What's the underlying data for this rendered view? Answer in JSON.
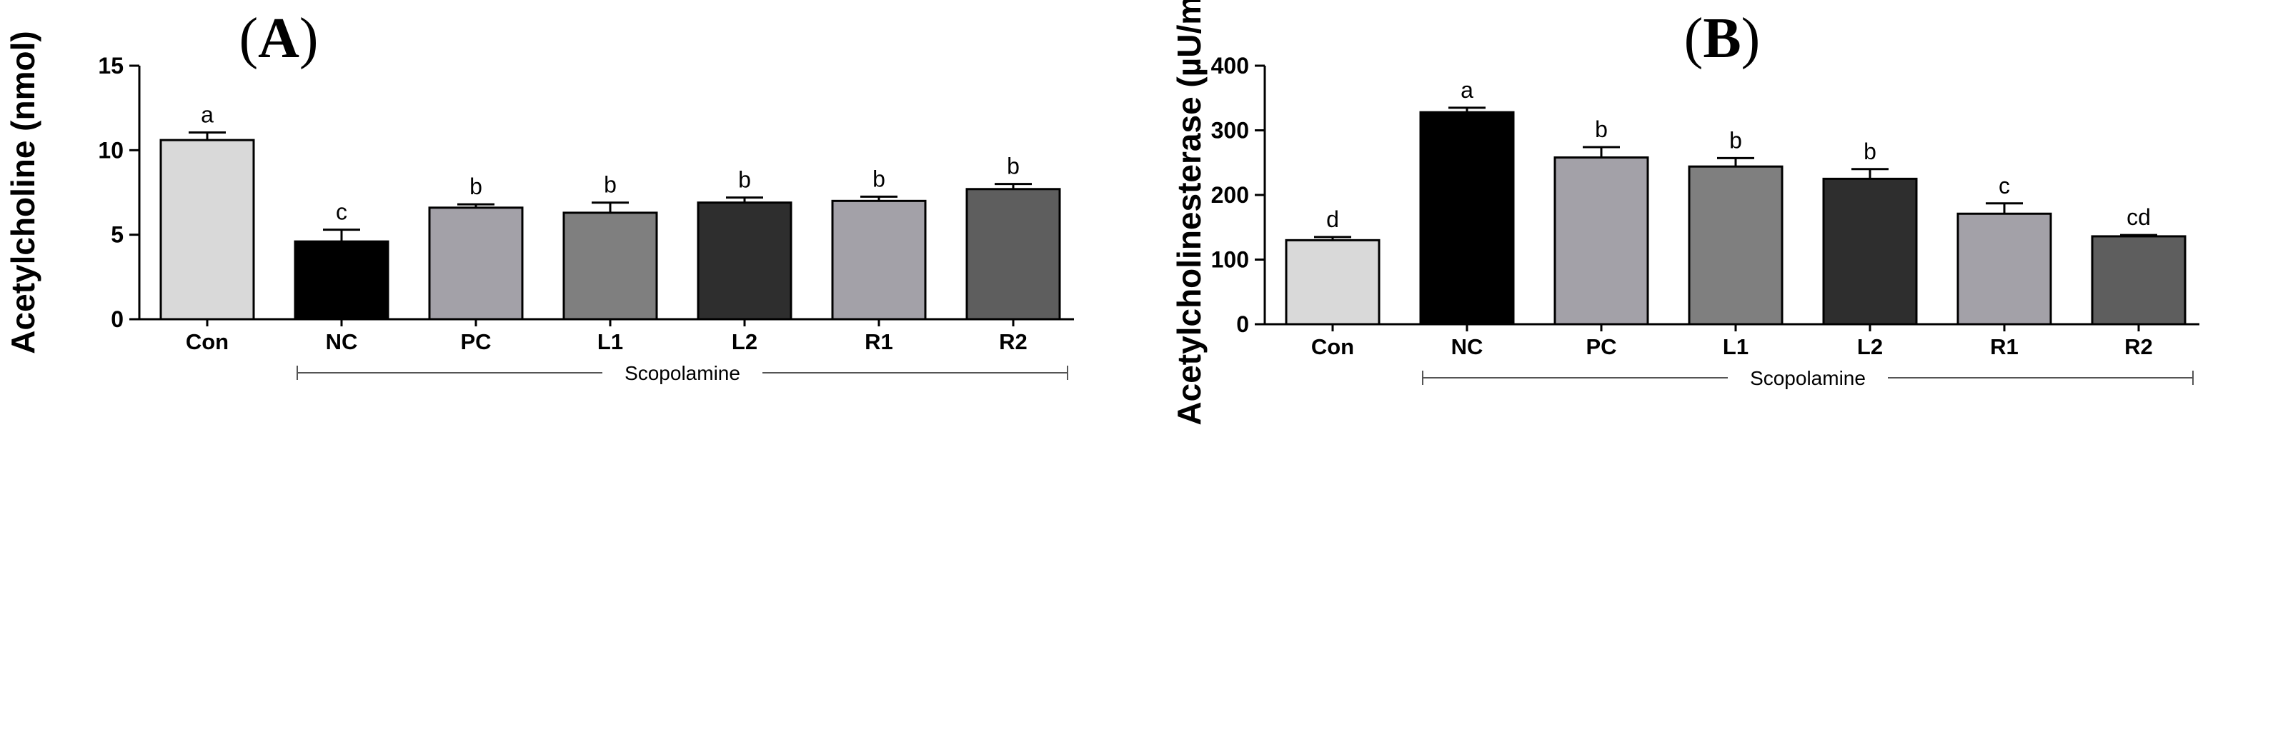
{
  "chart_data": [
    {
      "type": "bar",
      "panel": "A",
      "panel_label_prefix": "(",
      "panel_label_suffix": ")",
      "title": "(A)",
      "ylabel": "Acetylcholine (nmol)",
      "xlabel": "",
      "ylim": [
        0,
        15
      ],
      "yticks": [
        0,
        5,
        10,
        15
      ],
      "categories": [
        "Con",
        "NC",
        "PC",
        "L1",
        "L2",
        "R1",
        "R2"
      ],
      "values": [
        10.6,
        4.6,
        6.6,
        6.3,
        6.9,
        7.0,
        7.7
      ],
      "errors": [
        0.45,
        0.7,
        0.2,
        0.6,
        0.3,
        0.25,
        0.3
      ],
      "significance": [
        "a",
        "c",
        "b",
        "b",
        "b",
        "b",
        "b"
      ],
      "bar_colors": [
        "#d9d9d9",
        "#000000",
        "#a3a1a8",
        "#7f7f7f",
        "#2e2e2e",
        "#a3a1a8",
        "#5e5e5e"
      ],
      "group_bracket": {
        "label": "Scopolamine",
        "from": "NC",
        "to": "R2"
      }
    },
    {
      "type": "bar",
      "panel": "B",
      "panel_label_prefix": "(",
      "panel_label_suffix": ")",
      "title": "(B)",
      "ylabel": "Acetylcholinesterase (µU/mL)",
      "xlabel": "",
      "ylim": [
        0,
        400
      ],
      "yticks": [
        0,
        100,
        200,
        300,
        400
      ],
      "categories": [
        "Con",
        "NC",
        "PC",
        "L1",
        "L2",
        "R1",
        "R2"
      ],
      "values": [
        130,
        328,
        258,
        244,
        225,
        171,
        136
      ],
      "errors": [
        5,
        7,
        16,
        13,
        15,
        16,
        2
      ],
      "significance": [
        "d",
        "a",
        "b",
        "b",
        "b",
        "c",
        "cd"
      ],
      "bar_colors": [
        "#d9d9d9",
        "#000000",
        "#a3a1a8",
        "#7f7f7f",
        "#2e2e2e",
        "#a3a1a8",
        "#5e5e5e"
      ],
      "group_bracket": {
        "label": "Scopolamine",
        "from": "NC",
        "to": "R2"
      }
    }
  ]
}
